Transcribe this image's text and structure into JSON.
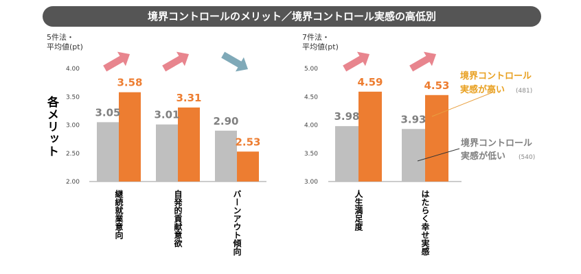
{
  "title": "境界コントロールのメリット／境界コントロール実感の高低別",
  "colors": {
    "high": "#ED7D31",
    "low": "#BFBFBF",
    "low_label": "#808080",
    "arrow_up": "#E8858E",
    "arrow_down": "#7FA9B8",
    "banner": "#555555"
  },
  "chart_data": [
    {
      "type": "bar",
      "unit_label": [
        "5件法・",
        "平均値(pt)"
      ],
      "side_label": "各メリット",
      "categories": [
        "継続就業意向",
        "自発的貢献意欲",
        "バーンアウト傾向"
      ],
      "series": [
        {
          "name": "境界コントロール実感が低い",
          "values": [
            3.05,
            3.01,
            2.9
          ]
        },
        {
          "name": "境界コントロール実感が高い",
          "values": [
            3.58,
            3.31,
            2.53
          ]
        }
      ],
      "value_labels": {
        "low": [
          "3.05",
          "3.01",
          "2.90"
        ],
        "high": [
          "3.58",
          "3.31",
          "2.53"
        ]
      },
      "ylim": [
        2.0,
        4.0
      ],
      "yticks": [
        "2.00",
        "2.50",
        "3.00",
        "3.50",
        "4.00"
      ],
      "trend_arrows": [
        "up",
        "up",
        "down"
      ]
    },
    {
      "type": "bar",
      "unit_label": [
        "7件法・",
        "平均値(pt)"
      ],
      "categories": [
        "人生満足度",
        "はたらく幸せ実感"
      ],
      "series": [
        {
          "name": "境界コントロール実感が低い",
          "values": [
            3.98,
            3.93
          ]
        },
        {
          "name": "境界コントロール実感が高い",
          "values": [
            4.59,
            4.53
          ]
        }
      ],
      "value_labels": {
        "low": [
          "3.98",
          "3.93"
        ],
        "high": [
          "4.59",
          "4.53"
        ]
      },
      "ylim": [
        3.0,
        5.0
      ],
      "yticks": [
        "3.00",
        "3.50",
        "4.00",
        "4.50",
        "5.00"
      ],
      "trend_arrows": [
        "up",
        "up"
      ]
    }
  ],
  "legend": {
    "high": {
      "line1": "境界コントロール",
      "line2": "実感が高い",
      "n": "(481)"
    },
    "low": {
      "line1": "境界コントロール",
      "line2": "実感が低い",
      "n": "(540)"
    }
  }
}
